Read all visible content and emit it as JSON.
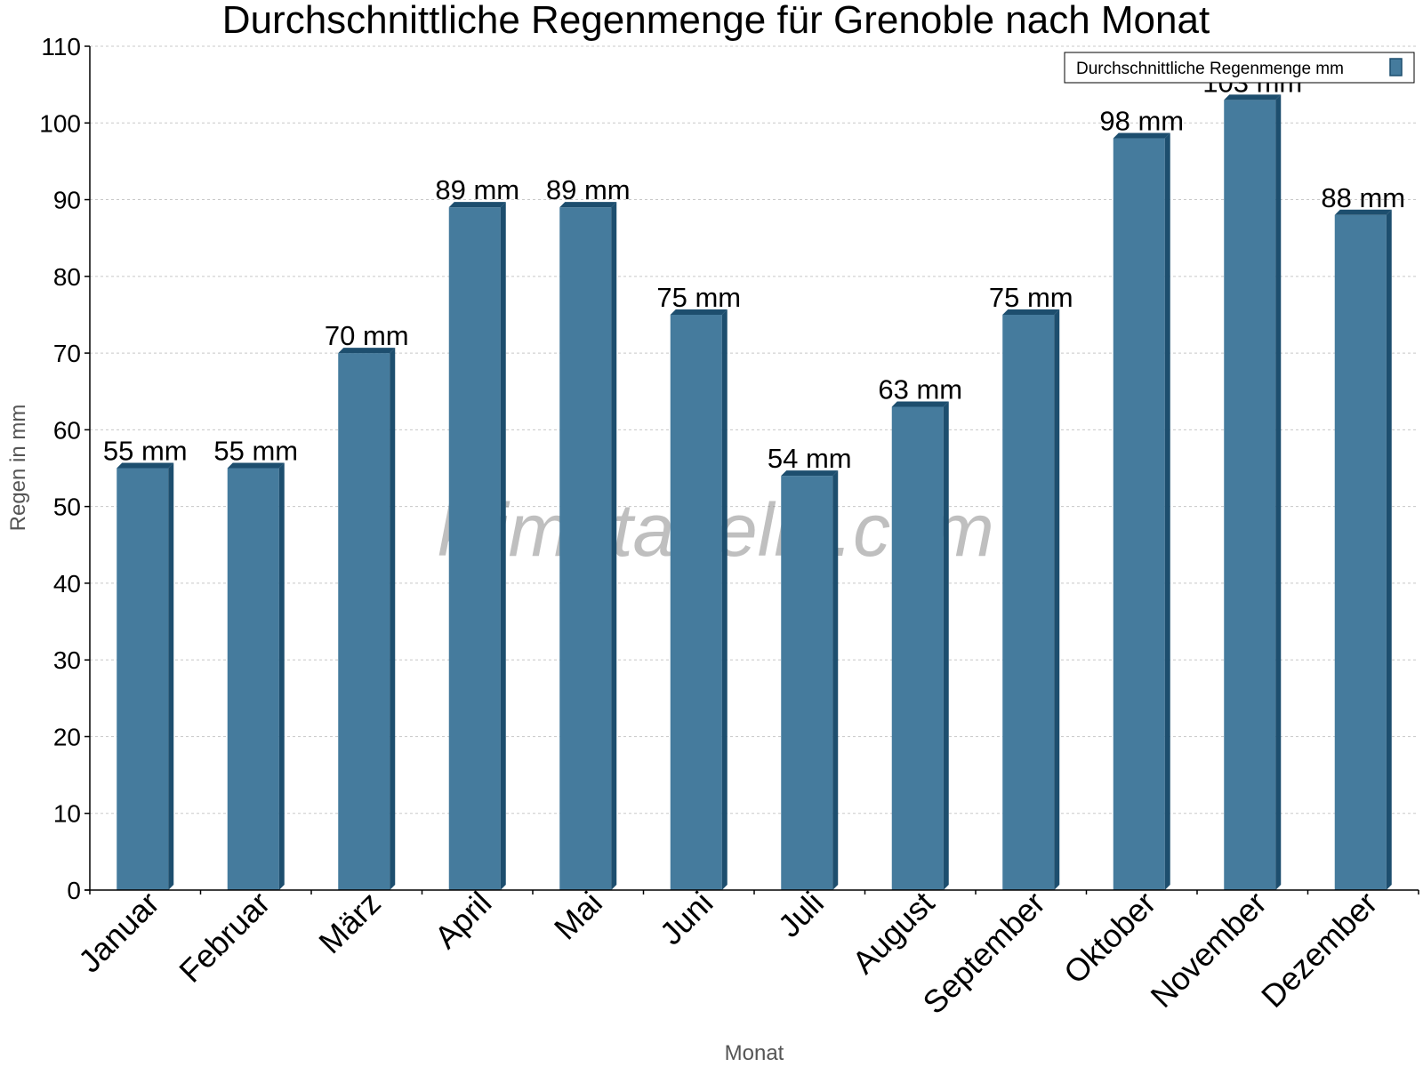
{
  "chart_data": {
    "type": "bar",
    "title": "Durchschnittliche Regenmenge für Grenoble nach Monat",
    "xlabel": "Monat",
    "ylabel": "Regen in mm",
    "categories": [
      "Januar",
      "Februar",
      "März",
      "April",
      "Mai",
      "Juni",
      "Juli",
      "August",
      "September",
      "Oktober",
      "November",
      "Dezember"
    ],
    "series": [
      {
        "name": "Durchschnittliche Regenmenge mm",
        "values": [
          55,
          55,
          70,
          89,
          89,
          75,
          54,
          63,
          75,
          98,
          103,
          88
        ],
        "labels": [
          "55 mm",
          "55 mm",
          "70 mm",
          "89 mm",
          "89 mm",
          "75 mm",
          "54 mm",
          "63 mm",
          "75 mm",
          "98 mm",
          "103 mm",
          "88 mm"
        ]
      }
    ],
    "ylim": [
      0,
      110
    ],
    "yticks": [
      0,
      10,
      20,
      30,
      40,
      50,
      60,
      70,
      80,
      90,
      100,
      110
    ],
    "grid": true,
    "legend_position": "top-right",
    "colors": {
      "bar": "#457b9d",
      "bar_side": "#1d4e6e",
      "bar_top": "#1d4e6e",
      "grid": "#c8c8c8",
      "axis": "#000000"
    }
  },
  "watermark": "klimatabelle.com"
}
